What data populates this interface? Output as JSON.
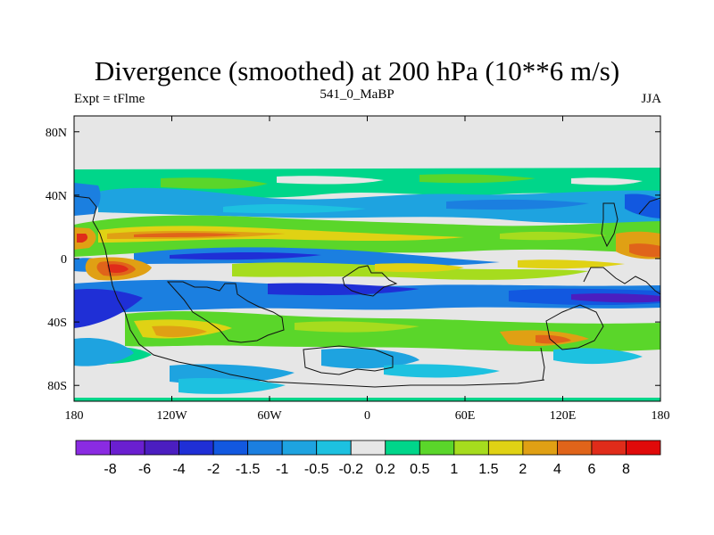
{
  "title": "Divergence (smoothed) at 200 hPa (10**6 m/s)",
  "left_label": "Expt = tFlme",
  "center_label": "541_0_MaBP",
  "right_label": "JJA",
  "map": {
    "lon_range": [
      -180,
      180
    ],
    "lat_range": [
      -90,
      90
    ],
    "x_ticks": [
      {
        "lon": -180,
        "label": "180"
      },
      {
        "lon": -120,
        "label": "120W"
      },
      {
        "lon": -60,
        "label": "60W"
      },
      {
        "lon": 0,
        "label": "0"
      },
      {
        "lon": 60,
        "label": "60E"
      },
      {
        "lon": 120,
        "label": "120E"
      },
      {
        "lon": 180,
        "label": "180"
      }
    ],
    "y_ticks": [
      {
        "lat": 80,
        "label": "80N"
      },
      {
        "lat": 40,
        "label": "40N"
      },
      {
        "lat": 0,
        "label": "0"
      },
      {
        "lat": -40,
        "label": "40S"
      },
      {
        "lat": -80,
        "label": "80S"
      }
    ]
  },
  "colorbar": {
    "labels": [
      "-8",
      "-6",
      "-4",
      "-2",
      "-1.5",
      "-1",
      "-0.5",
      "-0.2",
      "0.2",
      "0.5",
      "1",
      "1.5",
      "2",
      "4",
      "6",
      "8"
    ],
    "colors": [
      "#8a2be2",
      "#6a1fd0",
      "#4b1ec0",
      "#1f2fd6",
      "#1258e0",
      "#1b7fe0",
      "#1ea3e0",
      "#1dc1e0",
      "#e6e6e6",
      "#00d68a",
      "#5ad62a",
      "#a6dc1e",
      "#e0d214",
      "#e0a014",
      "#e0641a",
      "#e02c1a",
      "#e00a0a"
    ]
  }
}
